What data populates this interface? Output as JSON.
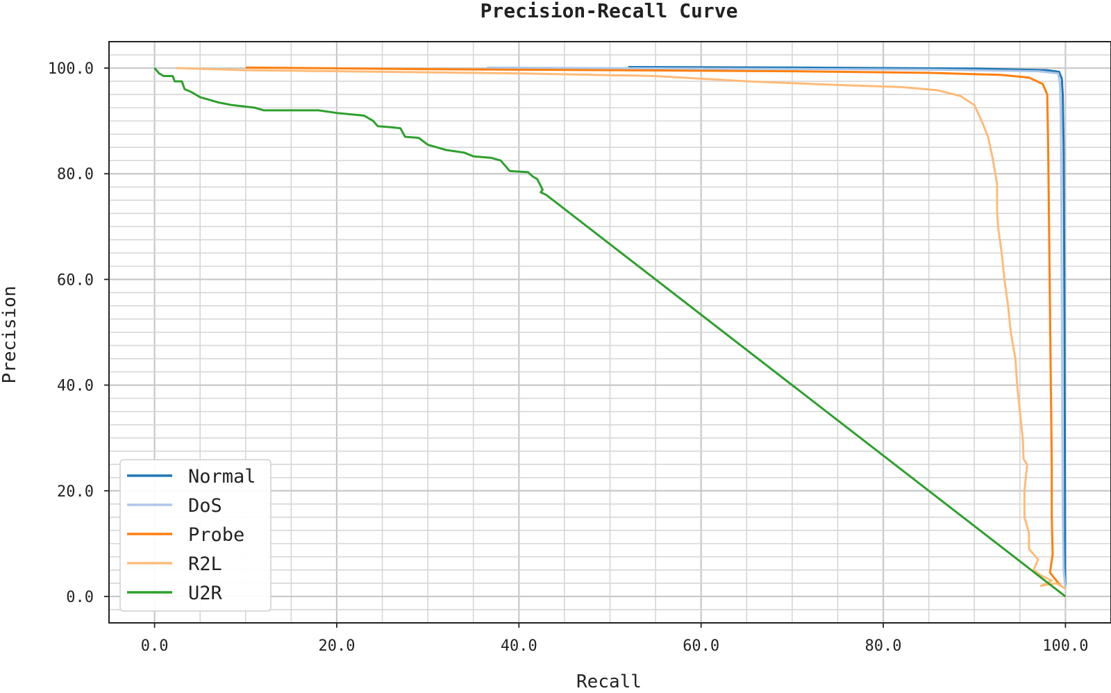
{
  "chart_data": {
    "type": "line",
    "title": "Precision-Recall Curve",
    "xlabel": "Recall",
    "ylabel": "Precision",
    "xlim": [
      -5,
      105
    ],
    "ylim": [
      -5,
      105
    ],
    "x_ticks": [
      "0.0",
      "20.0",
      "40.0",
      "60.0",
      "80.0",
      "100.0"
    ],
    "y_ticks": [
      "0.0",
      "20.0",
      "40.0",
      "60.0",
      "80.0",
      "100.0"
    ],
    "grid": true,
    "legend_position": "lower-left",
    "series": [
      {
        "name": "Normal",
        "color": "#1f77b4",
        "points": [
          [
            52,
            100.2
          ],
          [
            70,
            100.1
          ],
          [
            90,
            99.9
          ],
          [
            98,
            99.6
          ],
          [
            99.3,
            99.3
          ],
          [
            99.6,
            98
          ],
          [
            99.7,
            95
          ],
          [
            99.8,
            85
          ],
          [
            99.85,
            70
          ],
          [
            99.9,
            50
          ],
          [
            99.93,
            30
          ],
          [
            99.95,
            15
          ],
          [
            99.97,
            5
          ],
          [
            100,
            2
          ]
        ]
      },
      {
        "name": "DoS",
        "color": "#aec7e8",
        "points": [
          [
            36.5,
            100.1
          ],
          [
            60,
            99.9
          ],
          [
            85,
            99.7
          ],
          [
            97,
            99.4
          ],
          [
            99.2,
            99.0
          ],
          [
            99.4,
            97
          ],
          [
            99.5,
            90
          ],
          [
            99.55,
            75
          ],
          [
            99.6,
            55
          ],
          [
            99.65,
            35
          ],
          [
            99.7,
            15
          ],
          [
            99.8,
            5
          ],
          [
            100,
            1.5
          ]
        ]
      },
      {
        "name": "Probe",
        "color": "#ff7f0e",
        "points": [
          [
            10,
            100.1
          ],
          [
            30,
            99.8
          ],
          [
            50,
            99.6
          ],
          [
            70,
            99.4
          ],
          [
            85,
            99.1
          ],
          [
            93,
            98.7
          ],
          [
            96,
            98.2
          ],
          [
            97.5,
            97
          ],
          [
            98,
            95
          ],
          [
            98.1,
            85
          ],
          [
            98.2,
            70
          ],
          [
            98.3,
            55
          ],
          [
            98.4,
            40
          ],
          [
            98.5,
            25
          ],
          [
            98.5,
            15
          ],
          [
            98.6,
            8
          ],
          [
            98.3,
            4.5
          ],
          [
            99,
            3
          ],
          [
            99.5,
            2
          ],
          [
            100,
            1.5
          ]
        ]
      },
      {
        "name": "R2L",
        "color": "#ffbb78",
        "points": [
          [
            2.3,
            100
          ],
          [
            10,
            99.6
          ],
          [
            25,
            99.3
          ],
          [
            40,
            99.0
          ],
          [
            55,
            98.5
          ],
          [
            65,
            97.5
          ],
          [
            75,
            96.8
          ],
          [
            82,
            96.4
          ],
          [
            86,
            95.8
          ],
          [
            88.5,
            94.7
          ],
          [
            90,
            93
          ],
          [
            90.8,
            90
          ],
          [
            91.5,
            87
          ],
          [
            92,
            83
          ],
          [
            92.5,
            78
          ],
          [
            92.5,
            73
          ],
          [
            92.6,
            70
          ],
          [
            93,
            65
          ],
          [
            93.3,
            60
          ],
          [
            93.7,
            55
          ],
          [
            94,
            50
          ],
          [
            94.5,
            45
          ],
          [
            94.7,
            40
          ],
          [
            95,
            35
          ],
          [
            95.3,
            30
          ],
          [
            95.4,
            26
          ],
          [
            95.8,
            25
          ],
          [
            95.5,
            20
          ],
          [
            95.5,
            15
          ],
          [
            96,
            12
          ],
          [
            96,
            9
          ],
          [
            97,
            7
          ],
          [
            96.5,
            5
          ],
          [
            97.3,
            4
          ],
          [
            98.5,
            3
          ],
          [
            97.3,
            2
          ],
          [
            99,
            2.5
          ],
          [
            100,
            1.5
          ]
        ]
      },
      {
        "name": "U2R",
        "color": "#2ca02c",
        "points": [
          [
            0,
            100
          ],
          [
            0.5,
            99
          ],
          [
            1,
            98.5
          ],
          [
            2,
            98.5
          ],
          [
            2.2,
            97.5
          ],
          [
            3,
            97.5
          ],
          [
            3.3,
            96
          ],
          [
            4,
            95.5
          ],
          [
            4.5,
            95
          ],
          [
            5,
            94.5
          ],
          [
            6,
            94
          ],
          [
            7,
            93.5
          ],
          [
            8.5,
            93
          ],
          [
            11,
            92.5
          ],
          [
            12,
            92
          ],
          [
            18,
            92
          ],
          [
            20,
            91.5
          ],
          [
            23,
            91
          ],
          [
            24,
            90
          ],
          [
            24.5,
            89
          ],
          [
            26,
            88.8
          ],
          [
            27,
            88.6
          ],
          [
            27.5,
            87
          ],
          [
            29,
            86.8
          ],
          [
            30,
            85.5
          ],
          [
            31,
            85
          ],
          [
            32,
            84.5
          ],
          [
            34,
            84
          ],
          [
            35,
            83.3
          ],
          [
            37,
            83
          ],
          [
            38,
            82.5
          ],
          [
            38.5,
            81.5
          ],
          [
            39,
            80.5
          ],
          [
            41,
            80.3
          ],
          [
            41.5,
            79.5
          ],
          [
            42,
            79
          ],
          [
            42.3,
            78
          ],
          [
            42.6,
            77
          ],
          [
            42.4,
            76.5
          ],
          [
            43,
            76
          ],
          [
            100,
            0
          ]
        ]
      }
    ]
  }
}
